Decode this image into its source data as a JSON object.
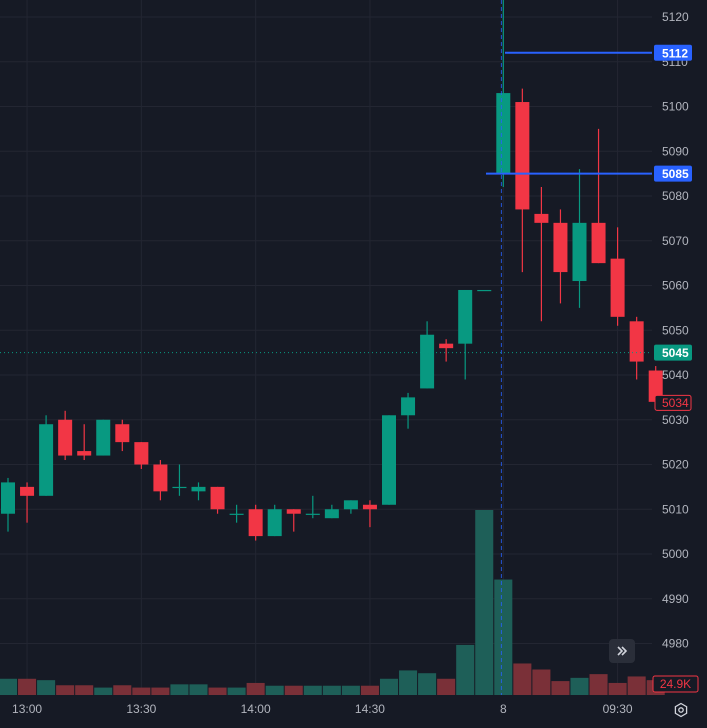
{
  "chart_data": {
    "type": "candlestick",
    "y_axis": {
      "ticks": [
        "5120",
        "5110",
        "5100",
        "5090",
        "5080",
        "5070",
        "5060",
        "5050",
        "5040",
        "5030",
        "5020",
        "5010",
        "5000",
        "4990",
        "4980"
      ],
      "range": [
        4972,
        5124
      ]
    },
    "x_axis": {
      "ticks": [
        {
          "label": "13:00",
          "index": 1
        },
        {
          "label": "13:30",
          "index": 7
        },
        {
          "label": "14:00",
          "index": 13
        },
        {
          "label": "14:30",
          "index": 19
        },
        {
          "label": "8",
          "index": 26
        },
        {
          "label": "09:30",
          "index": 32
        }
      ]
    },
    "candles": [
      {
        "o": 5009,
        "h": 5017,
        "l": 5005,
        "c": 5016,
        "v": 3.5
      },
      {
        "o": 5015,
        "h": 5016,
        "l": 5007,
        "c": 5013,
        "v": 3.5
      },
      {
        "o": 5013,
        "h": 5031,
        "l": 5013,
        "c": 5029,
        "v": 3.2
      },
      {
        "o": 5030,
        "h": 5032,
        "l": 5021,
        "c": 5022,
        "v": 2.1
      },
      {
        "o": 5023,
        "h": 5029,
        "l": 5021,
        "c": 5022,
        "v": 2.1
      },
      {
        "o": 5022,
        "h": 5030,
        "l": 5022,
        "c": 5030,
        "v": 1.6
      },
      {
        "o": 5029,
        "h": 5030,
        "l": 5023,
        "c": 5025,
        "v": 2.1
      },
      {
        "o": 5025,
        "h": 5025,
        "l": 5019,
        "c": 5020,
        "v": 1.6
      },
      {
        "o": 5020,
        "h": 5021,
        "l": 5012,
        "c": 5014,
        "v": 1.6
      },
      {
        "o": 5015,
        "h": 5020,
        "l": 5013,
        "c": 5015,
        "v": 2.3
      },
      {
        "o": 5014,
        "h": 5016,
        "l": 5012,
        "c": 5015,
        "v": 2.3
      },
      {
        "o": 5015,
        "h": 5015,
        "l": 5009,
        "c": 5010,
        "v": 1.6
      },
      {
        "o": 5009,
        "h": 5011,
        "l": 5007,
        "c": 5009,
        "v": 1.6
      },
      {
        "o": 5010,
        "h": 5011,
        "l": 5003,
        "c": 5004,
        "v": 2.6
      },
      {
        "o": 5004,
        "h": 5011,
        "l": 5004,
        "c": 5010,
        "v": 2.0
      },
      {
        "o": 5010,
        "h": 5010,
        "l": 5005,
        "c": 5009,
        "v": 2.0
      },
      {
        "o": 5009,
        "h": 5013,
        "l": 5008,
        "c": 5009,
        "v": 2.0
      },
      {
        "o": 5008,
        "h": 5011,
        "l": 5008,
        "c": 5010,
        "v": 2.0
      },
      {
        "o": 5010,
        "h": 5012,
        "l": 5009,
        "c": 5012,
        "v": 2.0
      },
      {
        "o": 5011,
        "h": 5012,
        "l": 5006,
        "c": 5010,
        "v": 2.0
      },
      {
        "o": 5011,
        "h": 5031,
        "l": 5011,
        "c": 5031,
        "v": 3.5
      },
      {
        "o": 5031,
        "h": 5036,
        "l": 5028,
        "c": 5035,
        "v": 5.3
      },
      {
        "o": 5037,
        "h": 5052,
        "l": 5037,
        "c": 5049,
        "v": 4.7
      },
      {
        "o": 5047,
        "h": 5048,
        "l": 5043,
        "c": 5046,
        "v": 3.5
      },
      {
        "o": 5047,
        "h": 5059,
        "l": 5039,
        "c": 5059,
        "v": 10.8
      },
      {
        "o": 5059,
        "h": 5059,
        "l": 5059,
        "c": 5059,
        "v": 39.9
      },
      {
        "o": 5085,
        "h": 5124,
        "l": 5082,
        "c": 5103,
        "v": 24.9
      },
      {
        "o": 5101,
        "h": 5104,
        "l": 5063,
        "c": 5077,
        "v": 6.8
      },
      {
        "o": 5076,
        "h": 5082,
        "l": 5052,
        "c": 5074,
        "v": 5.5
      },
      {
        "o": 5074,
        "h": 5077,
        "l": 5056,
        "c": 5063,
        "v": 3.0
      },
      {
        "o": 5061,
        "h": 5086,
        "l": 5055,
        "c": 5074,
        "v": 3.7
      },
      {
        "o": 5074,
        "h": 5095,
        "l": 5065,
        "c": 5065,
        "v": 4.5
      },
      {
        "o": 5066,
        "h": 5073,
        "l": 5051,
        "c": 5053,
        "v": 2.6
      },
      {
        "o": 5052,
        "h": 5053,
        "l": 5039,
        "c": 5043,
        "v": 4.0
      },
      {
        "o": 5041,
        "h": 5042,
        "l": 5034,
        "c": 5034,
        "v": 3.2
      }
    ],
    "price_lines": [
      {
        "label": "5112",
        "value": 5112,
        "color": "#2962ff"
      },
      {
        "label": "5085",
        "value": 5085,
        "color": "#2962ff"
      }
    ],
    "last_price": {
      "label": "5045",
      "value": 5045,
      "color": "#089981"
    },
    "current_price": {
      "label": "5034",
      "value": 5034,
      "color": "#f23645"
    },
    "volume_label": "24.9K",
    "session_break_index": 25.9,
    "colors": {
      "up": "#089981",
      "down": "#f23645",
      "up_volume": "#1e5f58",
      "down_volume": "#7a3038",
      "grid": "#232632",
      "background": "#161a25"
    }
  },
  "controls": {
    "scroll_icon": "double-chevron-right-icon",
    "settings_icon": "gear-icon"
  }
}
